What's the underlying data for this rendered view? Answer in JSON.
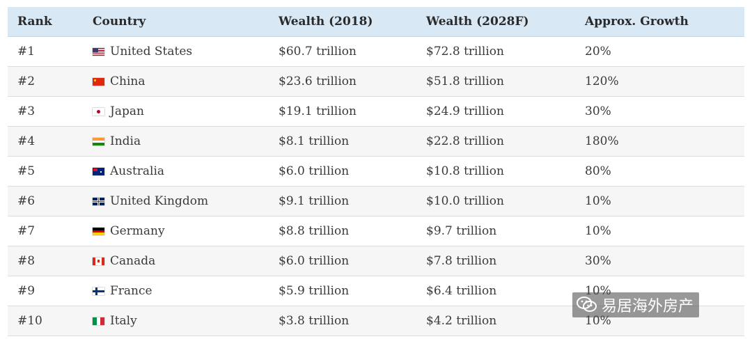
{
  "header": {
    "rank": "Rank",
    "country": "Country",
    "wealth_2018": "Wealth (2018)",
    "wealth_2028": "Wealth (2028F)",
    "growth": "Approx. Growth"
  },
  "rows": [
    {
      "rank": "#1",
      "country": "United States",
      "flag": "us-flag-icon",
      "w2018": "$60.7 trillion",
      "w2028": "$72.8 trillion",
      "growth": "20%"
    },
    {
      "rank": "#2",
      "country": "China",
      "flag": "china-flag-icon",
      "w2018": "$23.6 trillion",
      "w2028": "$51.8 trillion",
      "growth": "120%"
    },
    {
      "rank": "#3",
      "country": "Japan",
      "flag": "japan-flag-icon",
      "w2018": "$19.1 trillion",
      "w2028": "$24.9 trillion",
      "growth": "30%"
    },
    {
      "rank": "#4",
      "country": "India",
      "flag": "india-flag-icon",
      "w2018": "$8.1 trillion",
      "w2028": "$22.8 trillion",
      "growth": "180%"
    },
    {
      "rank": "#5",
      "country": "Australia",
      "flag": "australia-flag-icon",
      "w2018": "$6.0 trillion",
      "w2028": "$10.8 trillion",
      "growth": "80%"
    },
    {
      "rank": "#6",
      "country": "United Kingdom",
      "flag": "uk-flag-icon",
      "w2018": "$9.1 trillion",
      "w2028": "$10.0 trillion",
      "growth": "10%"
    },
    {
      "rank": "#7",
      "country": "Germany",
      "flag": "germany-flag-icon",
      "w2018": "$8.8 trillion",
      "w2028": "$9.7 trillion",
      "growth": "10%"
    },
    {
      "rank": "#8",
      "country": "Canada",
      "flag": "canada-flag-icon",
      "w2018": "$6.0 trillion",
      "w2028": "$7.8 trillion",
      "growth": "30%"
    },
    {
      "rank": "#9",
      "country": "France",
      "flag": "finland-flag-icon",
      "w2018": "$5.9 trillion",
      "w2028": "$6.4 trillion",
      "growth": "10%"
    },
    {
      "rank": "#10",
      "country": "Italy",
      "flag": "italy-flag-icon",
      "w2018": "$3.8 trillion",
      "w2028": "$4.2 trillion",
      "growth": "10%"
    }
  ],
  "watermark": {
    "icon": "wechat-icon",
    "text": "易居海外房产"
  },
  "colors": {
    "header_bg": "#d8e8f4",
    "row_alt_bg": "#f6f6f6",
    "border": "#dcdcdc"
  }
}
